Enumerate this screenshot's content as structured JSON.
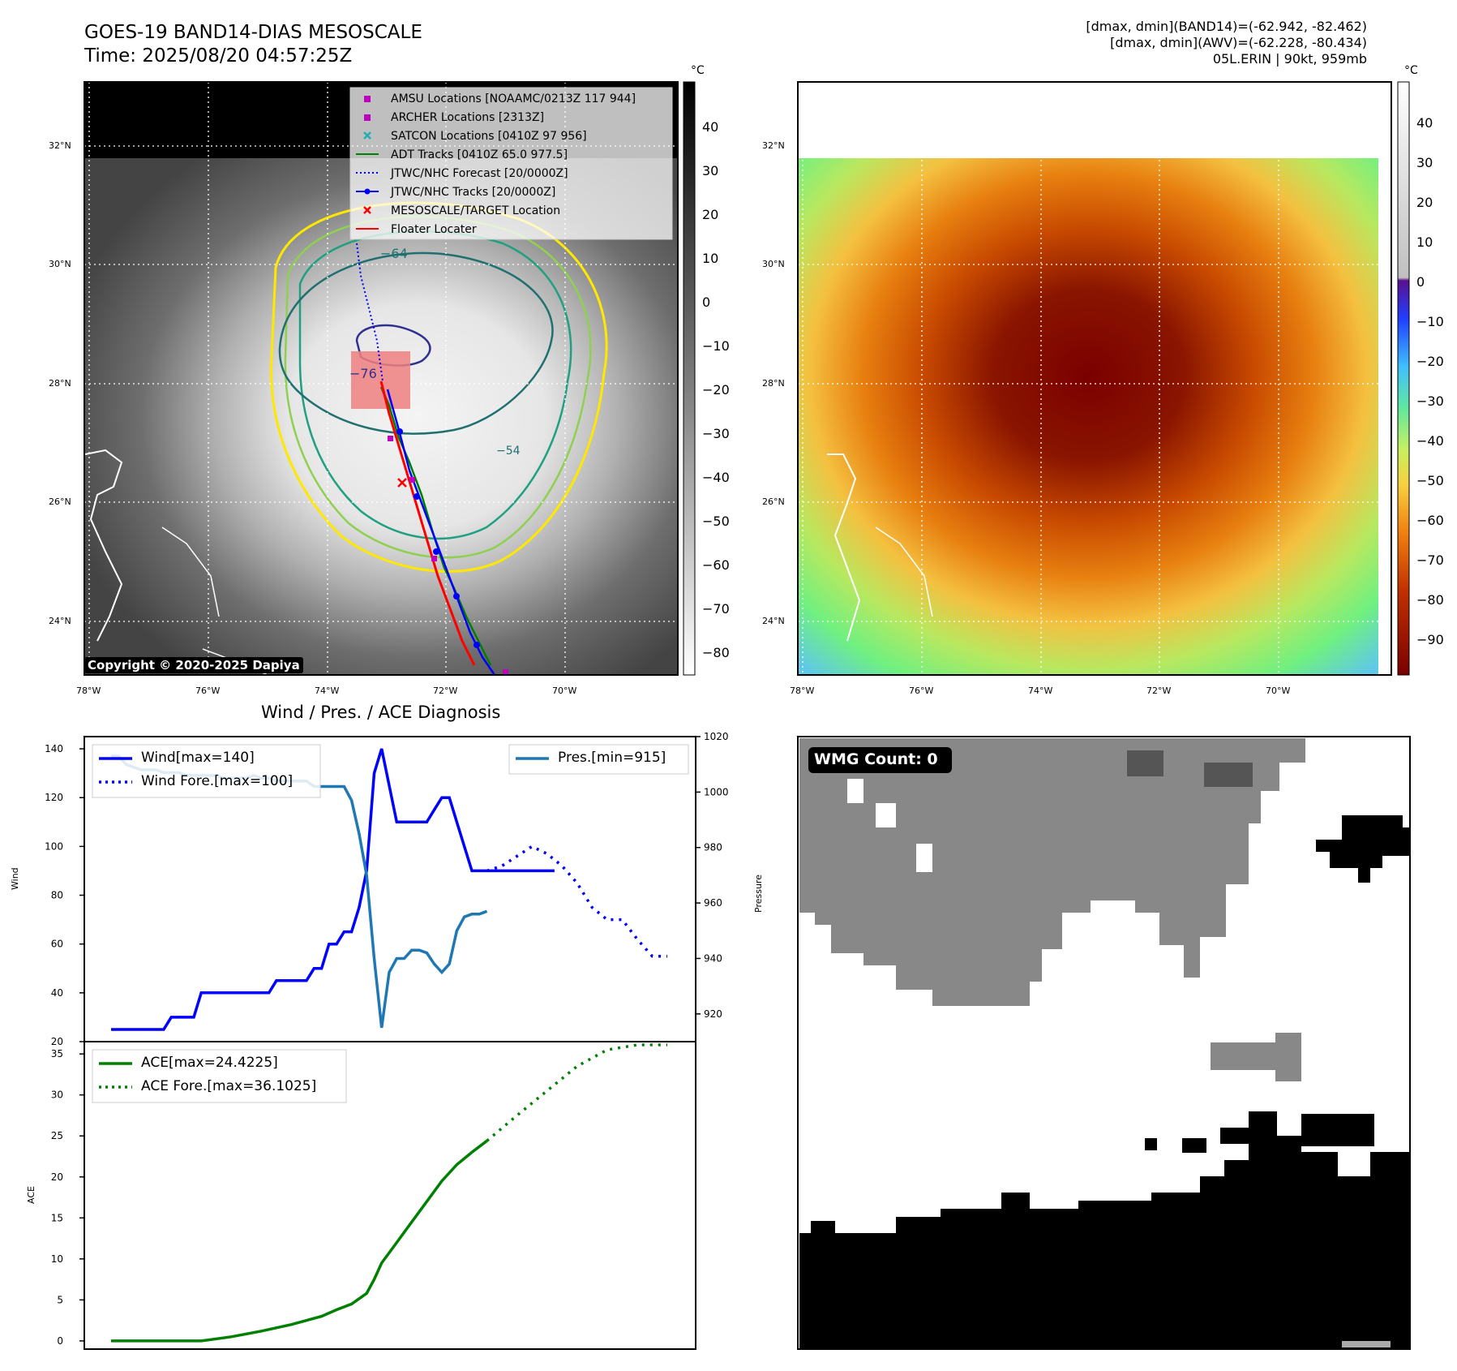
{
  "header": {
    "title_line1": "GOES-19 BAND14-DIAS MESOSCALE",
    "title_line2": "Time: 2025/08/20 04:57:25Z",
    "info_line1": "[dmax, dmin](BAND14)=(-62.942, -82.462)",
    "info_line2": "[dmax, dmin](AWV)=(-62.228, -80.434)",
    "info_line3": "05L.ERIN | 90kt, 959mb"
  },
  "map_left": {
    "unit": "°C",
    "lat_labels": [
      "32°N",
      "30°N",
      "28°N",
      "26°N",
      "24°N"
    ],
    "lon_labels": [
      "78°W",
      "76°W",
      "74°W",
      "72°W",
      "70°W"
    ],
    "colorbar_ticks": [
      "40",
      "30",
      "20",
      "10",
      "0",
      "−10",
      "−20",
      "−30",
      "−40",
      "−50",
      "−60",
      "−70",
      "−80"
    ],
    "contour_labels": [
      "−64",
      "−76",
      "−54"
    ],
    "copyright": "Copyright © 2020-2025 Dapiya",
    "legend": [
      {
        "label": "AMSU Locations [NOAAMC/0213Z 117 944]",
        "color": "#c000c0",
        "marker": "square"
      },
      {
        "label": "ARCHER Locations [2313Z]",
        "color": "#c000c0",
        "marker": "square"
      },
      {
        "label": "SATCON Locations [0410Z 97 956]",
        "color": "#20b0b0",
        "marker": "x"
      },
      {
        "label": "ADT Tracks [0410Z 65.0 977.5]",
        "color": "#008000",
        "marker": "line"
      },
      {
        "label": "JTWC/NHC Forecast [20/0000Z]",
        "color": "#0000ff",
        "marker": "dotted"
      },
      {
        "label": "JTWC/NHC Tracks [20/0000Z]",
        "color": "#0000ff",
        "marker": "line-dot"
      },
      {
        "label": "MESOSCALE/TARGET Location",
        "color": "#ff0000",
        "marker": "x"
      },
      {
        "label": "Floater Locater",
        "color": "#ff0000",
        "marker": "line"
      }
    ]
  },
  "map_right": {
    "unit": "°C",
    "lat_labels": [
      "32°N",
      "30°N",
      "28°N",
      "26°N",
      "24°N"
    ],
    "lon_labels": [
      "78°W",
      "76°W",
      "74°W",
      "72°W",
      "70°W"
    ],
    "colorbar_ticks": [
      "40",
      "30",
      "20",
      "10",
      "0",
      "−10",
      "−20",
      "−30",
      "−40",
      "−50",
      "−60",
      "−70",
      "−80",
      "−90"
    ]
  },
  "wmg": {
    "label": "WMG Count: 0"
  },
  "chart_data": [
    {
      "type": "line",
      "title": "Wind / Pres. / ACE Diagnosis",
      "ylabel": "Wind",
      "ylim": [
        20,
        145
      ],
      "y_ticks": [
        20,
        40,
        60,
        80,
        100,
        120,
        140
      ],
      "y2label": "Pressure",
      "y2lim": [
        910,
        1020
      ],
      "y2_ticks": [
        920,
        940,
        960,
        980,
        1000,
        1020
      ],
      "legend_left": [
        "Wind[max=140]",
        "Wind Fore.[max=100]"
      ],
      "legend_right": [
        "Pres.[min=915]"
      ],
      "colors": {
        "wind": "#0000ff",
        "pressure": "#1f77b4"
      },
      "series": [
        {
          "name": "Wind[max=140]",
          "axis": "left",
          "style": "solid",
          "x": [
            0,
            1,
            2,
            3,
            4,
            5,
            6,
            7,
            8,
            9,
            10,
            11,
            12,
            13,
            14,
            15,
            16,
            17,
            18,
            19,
            20,
            21,
            22,
            23,
            24,
            25,
            26,
            27,
            28,
            29,
            30,
            31,
            32,
            33,
            34,
            35,
            36,
            37,
            38,
            39,
            40,
            41,
            42,
            43,
            44,
            45,
            46,
            47,
            48,
            49,
            50,
            51,
            52,
            53,
            54,
            55,
            56,
            57,
            58,
            59
          ],
          "values": [
            25,
            25,
            25,
            25,
            25,
            25,
            25,
            25,
            30,
            30,
            30,
            30,
            40,
            40,
            40,
            40,
            40,
            40,
            40,
            40,
            40,
            40,
            45,
            45,
            45,
            45,
            45,
            50,
            50,
            60,
            60,
            65,
            65,
            75,
            90,
            130,
            140,
            125,
            110,
            110,
            110,
            110,
            110,
            115,
            120,
            120,
            110,
            100,
            90,
            90,
            90,
            90,
            90,
            90,
            90,
            90,
            90,
            90,
            90,
            90
          ]
        },
        {
          "name": "Wind Fore.[max=100]",
          "axis": "left",
          "style": "dotted",
          "x": [
            50,
            52,
            54,
            56,
            58,
            60,
            62,
            64,
            66,
            68,
            70,
            72,
            74
          ],
          "values": [
            90,
            92,
            96,
            100,
            97,
            92,
            85,
            75,
            70,
            70,
            62,
            55,
            55
          ]
        },
        {
          "name": "Pres.[min=915]",
          "axis": "right",
          "style": "solid",
          "x": [
            0,
            1,
            2,
            3,
            4,
            5,
            6,
            7,
            8,
            9,
            10,
            11,
            12,
            13,
            14,
            15,
            16,
            17,
            18,
            19,
            20,
            21,
            22,
            23,
            24,
            25,
            26,
            27,
            28,
            29,
            30,
            31,
            32,
            33,
            34,
            35,
            36,
            37,
            38,
            39,
            40,
            41,
            42,
            43,
            44,
            45,
            46,
            47,
            48,
            49,
            50
          ],
          "values": [
            1013,
            1013,
            1010,
            1009,
            1008,
            1008,
            1008,
            1007,
            1007,
            1007,
            1006,
            1006,
            1006,
            1006,
            1006,
            1005,
            1005,
            1005,
            1005,
            1006,
            1005,
            1005,
            1004,
            1004,
            1004,
            1004,
            1004,
            1002,
            1002,
            1002,
            1002,
            1002,
            997,
            985,
            970,
            940,
            915,
            935,
            940,
            940,
            943,
            943,
            942,
            938,
            935,
            938,
            950,
            955,
            956,
            956,
            957
          ]
        }
      ]
    },
    {
      "type": "line",
      "ylabel": "ACE",
      "ylim": [
        -1,
        36.5
      ],
      "y_ticks": [
        0,
        5,
        10,
        15,
        20,
        25,
        30,
        35
      ],
      "legend": [
        "ACE[max=24.4225]",
        "ACE Fore.[max=36.1025]"
      ],
      "color": "#008000",
      "series": [
        {
          "name": "ACE[max=24.4225]",
          "style": "solid",
          "x": [
            0,
            6,
            12,
            16,
            20,
            24,
            28,
            30,
            32,
            34,
            35,
            36,
            38,
            40,
            42,
            44,
            46,
            48,
            50
          ],
          "values": [
            0,
            0,
            0,
            0.5,
            1.2,
            2,
            3,
            3.8,
            4.5,
            5.8,
            7.5,
            9.5,
            12,
            14.5,
            17,
            19.5,
            21.5,
            23,
            24.4
          ]
        },
        {
          "name": "ACE Fore.[max=36.1025]",
          "style": "dotted",
          "x": [
            50,
            54,
            58,
            62,
            66,
            70,
            74
          ],
          "values": [
            24.4,
            27.5,
            30.5,
            33.5,
            35.5,
            36.1,
            36.1
          ]
        }
      ]
    }
  ]
}
